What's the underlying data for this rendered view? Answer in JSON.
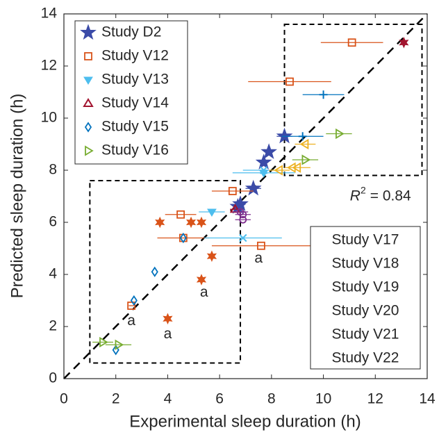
{
  "chart_data": {
    "type": "scatter",
    "xlabel": "Experimental sleep duration (h)",
    "ylabel": "Predicted sleep duration (h)",
    "xlim": [
      0,
      14
    ],
    "ylim": [
      0,
      14
    ],
    "xticks": [
      0,
      2,
      4,
      6,
      8,
      10,
      12,
      14
    ],
    "yticks": [
      0,
      2,
      4,
      6,
      8,
      10,
      12,
      14
    ],
    "grid": false,
    "identity_line": true,
    "boxes": [
      [
        1.0,
        6.8,
        0.6,
        7.6
      ],
      [
        8.5,
        13.8,
        7.8,
        13.6
      ]
    ],
    "r2_label": {
      "symbol": "R",
      "sup": "2",
      "text": "= 0.84",
      "x": 12.2,
      "y": 7.0
    },
    "annotations": [
      {
        "text": "a",
        "x": 7.5,
        "y": 4.6
      },
      {
        "text": "a",
        "x": 5.4,
        "y": 3.3
      },
      {
        "text": "a",
        "x": 2.6,
        "y": 2.2
      },
      {
        "text": "a",
        "x": 4.0,
        "y": 1.7
      }
    ],
    "series": [
      {
        "name": "Study D2",
        "color": "#3b4ba8",
        "marker": "star",
        "x": [
          6.8,
          6.7,
          7.3,
          7.7,
          7.9,
          8.5
        ],
        "values": [
          6.7,
          6.6,
          7.3,
          8.3,
          8.7,
          9.3
        ],
        "xerr": [
          0.2,
          null,
          0.3,
          null,
          null,
          0.3
        ]
      },
      {
        "name": "Study V12",
        "color": "#d95319",
        "marker": "square",
        "x": [
          11.1,
          8.7,
          6.5,
          4.5,
          4.6,
          7.6,
          2.6
        ],
        "values": [
          12.9,
          11.4,
          7.2,
          6.3,
          5.4,
          5.1,
          2.8
        ],
        "xerr": [
          1.2,
          1.6,
          0.8,
          0.6,
          1.0,
          1.9,
          0.1
        ]
      },
      {
        "name": "Study V13",
        "color": "#4dbeee",
        "marker": "tridown",
        "x": [
          5.7,
          7.7
        ],
        "values": [
          6.4,
          7.9
        ],
        "xerr": [
          0.5,
          1.2
        ]
      },
      {
        "name": "Study V14",
        "color": "#a2142f",
        "marker": "triup",
        "x": [
          6.6
        ],
        "values": [
          6.5
        ],
        "xerr": [
          0.2
        ]
      },
      {
        "name": "Study V15",
        "color": "#0072bd",
        "marker": "diamond",
        "x": [
          4.6,
          3.5,
          2.7,
          2.0
        ],
        "values": [
          5.4,
          4.1,
          3.0,
          1.1
        ],
        "xerr": [
          null,
          null,
          null,
          null
        ]
      },
      {
        "name": "Study V16",
        "color": "#77ac30",
        "marker": "triright",
        "x": [
          10.6,
          9.3,
          1.5,
          2.1
        ],
        "values": [
          9.4,
          8.4,
          1.4,
          1.3
        ],
        "xerr": [
          0.5,
          0.5,
          0.4,
          0.5
        ]
      },
      {
        "name": "Study V17",
        "color": "#0072bd",
        "marker": "plus",
        "x": [
          10.0,
          9.2
        ],
        "values": [
          10.9,
          9.3
        ],
        "xerr": [
          0.8,
          0.8
        ]
      },
      {
        "name": "Study V18",
        "color": "#4dbeee",
        "marker": "cross",
        "x": [
          6.9,
          7.7
        ],
        "values": [
          5.4,
          8.0
        ],
        "xerr": [
          1.5,
          0.8
        ]
      },
      {
        "name": "Study V19",
        "color": "#d95319",
        "marker": "hexagram",
        "x": [
          3.7,
          4.9,
          5.3,
          5.7,
          5.3,
          4.0
        ],
        "values": [
          6.0,
          6.0,
          6.0,
          4.7,
          3.8,
          2.3
        ],
        "xerr": [
          null,
          null,
          null,
          null,
          null,
          null
        ]
      },
      {
        "name": "Study V20",
        "color": "#7e2f8e",
        "marker": "circle",
        "x": [
          6.9,
          6.9,
          6.8
        ],
        "values": [
          6.3,
          6.1,
          6.4
        ],
        "xerr": [
          0.3,
          0.3,
          0.3
        ]
      },
      {
        "name": "Study V21",
        "color": "#edb120",
        "marker": "trileft",
        "x": [
          9.3,
          9.0,
          8.3,
          8.8
        ],
        "values": [
          9.0,
          8.1,
          8.0,
          8.1
        ],
        "xerr": [
          0.4,
          0.5,
          0.4,
          null
        ]
      },
      {
        "name": "Study V22",
        "color": "#a2142f",
        "marker": "hexagram",
        "x": [
          13.1
        ],
        "values": [
          12.9
        ],
        "xerr": [
          0.1
        ]
      }
    ]
  }
}
